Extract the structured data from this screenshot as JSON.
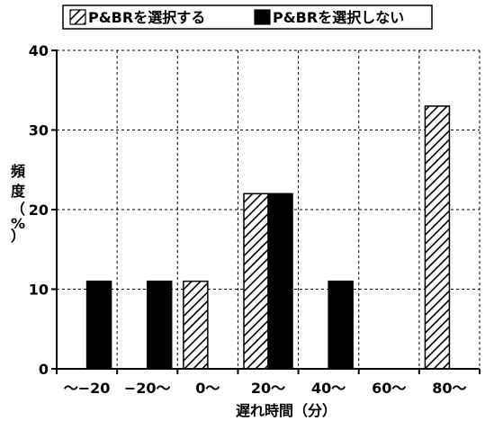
{
  "chart_data": {
    "type": "bar",
    "categories": [
      "〜−20",
      "−20〜",
      "0〜",
      "20〜",
      "40〜",
      "60〜",
      "80〜"
    ],
    "series": [
      {
        "name": "P&BRを選択する",
        "values": [
          0,
          0,
          11,
          22,
          0,
          0,
          33
        ],
        "pattern": "hatched"
      },
      {
        "name": "P&BRを選択しない",
        "values": [
          11,
          11,
          0,
          22,
          11,
          0,
          0
        ],
        "pattern": "solid"
      }
    ],
    "xlabel": "遅れ時間（分）",
    "ylabel": "頻度（%）",
    "ylim": [
      0,
      40
    ],
    "yticks": [
      0,
      10,
      20,
      30,
      40
    ],
    "grid": true,
    "legend_position": "top"
  }
}
